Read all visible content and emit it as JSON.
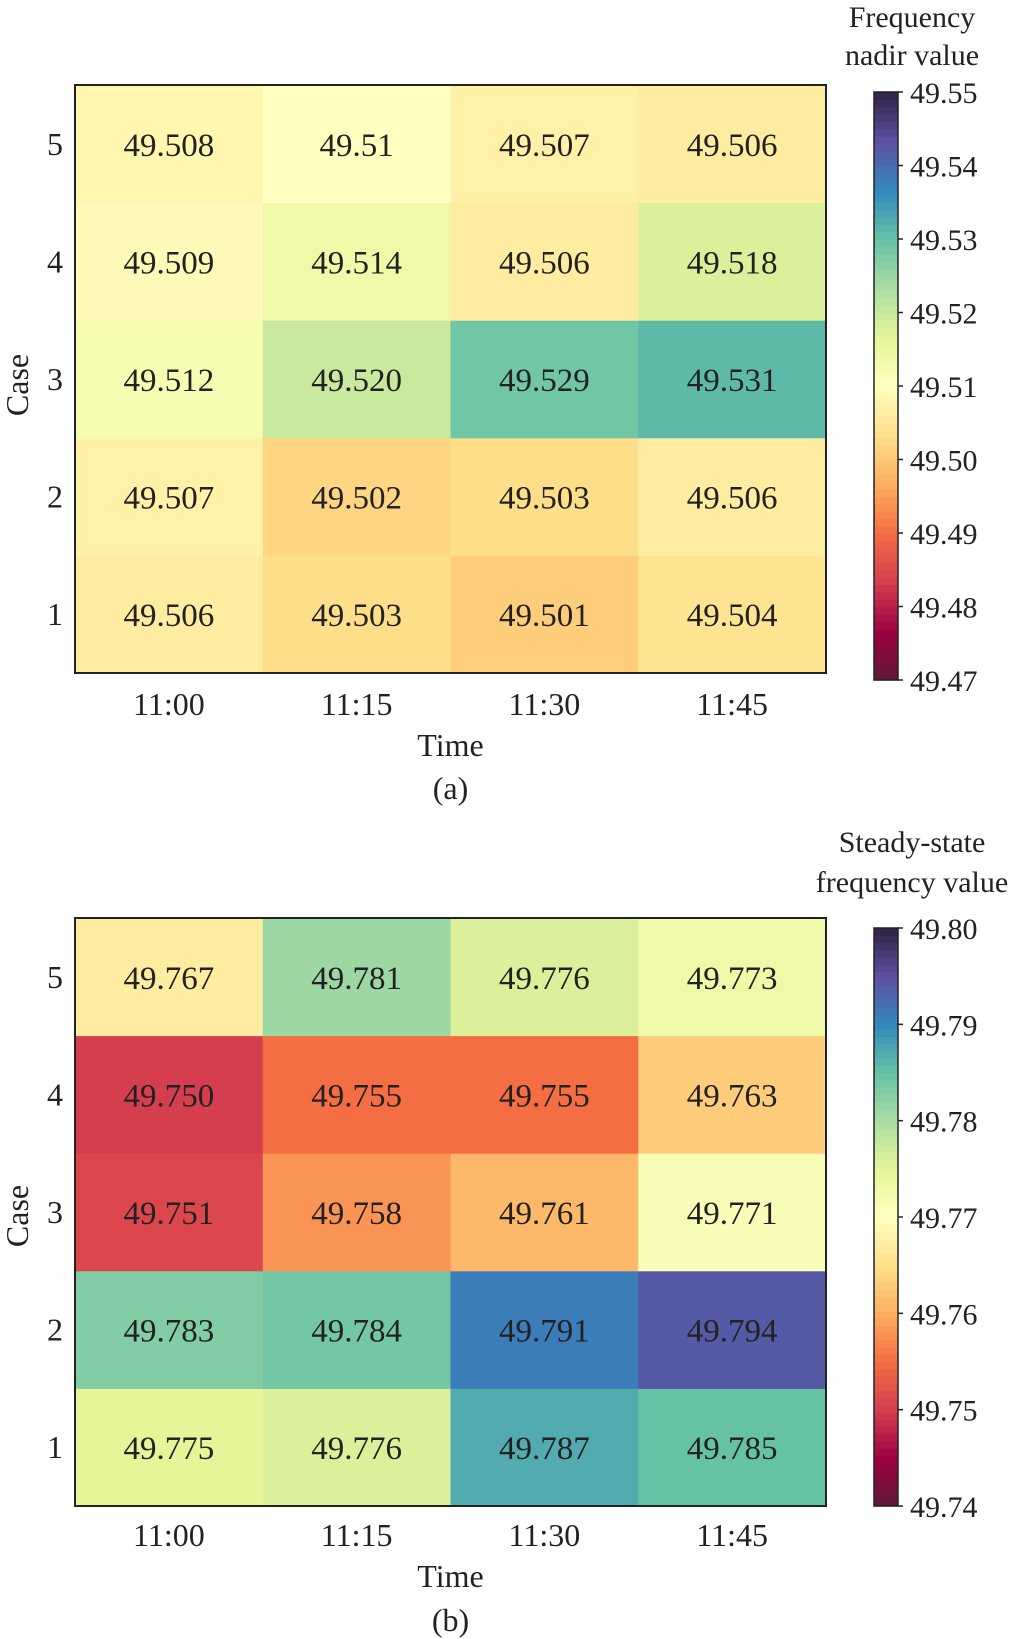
{
  "chart_data": [
    {
      "type": "heatmap",
      "panel_label": "(a)",
      "xlabel": "Time",
      "ylabel": "Case",
      "x_categories": [
        "11:00",
        "11:15",
        "11:30",
        "11:45"
      ],
      "y_categories": [
        "1",
        "2",
        "3",
        "4",
        "5"
      ],
      "values": [
        [
          49.506,
          49.503,
          49.501,
          49.504
        ],
        [
          49.507,
          49.502,
          49.503,
          49.506
        ],
        [
          49.512,
          49.52,
          49.529,
          49.531
        ],
        [
          49.509,
          49.514,
          49.506,
          49.518
        ],
        [
          49.508,
          49.51,
          49.507,
          49.506
        ]
      ],
      "value_labels": [
        [
          "49.506",
          "49.503",
          "49.501",
          "49.504"
        ],
        [
          "49.507",
          "49.502",
          "49.503",
          "49.506"
        ],
        [
          "49.512",
          "49.520",
          "49.529",
          "49.531"
        ],
        [
          "49.509",
          "49.514",
          "49.506",
          "49.518"
        ],
        [
          "49.508",
          "49.51",
          "49.507",
          "49.506"
        ]
      ],
      "colorbar": {
        "title_lines": [
          "Frequency",
          "nadir value"
        ],
        "min": 49.47,
        "max": 49.55,
        "ticks": [
          "49.47",
          "49.48",
          "49.49",
          "49.50",
          "49.51",
          "49.52",
          "49.53",
          "49.54",
          "49.55"
        ],
        "colormap": "Spectral"
      }
    },
    {
      "type": "heatmap",
      "panel_label": "(b)",
      "xlabel": "Time",
      "ylabel": "Case",
      "x_categories": [
        "11:00",
        "11:15",
        "11:30",
        "11:45"
      ],
      "y_categories": [
        "1",
        "2",
        "3",
        "4",
        "5"
      ],
      "values": [
        [
          49.775,
          49.776,
          49.787,
          49.785
        ],
        [
          49.783,
          49.784,
          49.791,
          49.794
        ],
        [
          49.751,
          49.758,
          49.761,
          49.771
        ],
        [
          49.75,
          49.755,
          49.755,
          49.763
        ],
        [
          49.767,
          49.781,
          49.776,
          49.773
        ]
      ],
      "value_labels": [
        [
          "49.775",
          "49.776",
          "49.787",
          "49.785"
        ],
        [
          "49.783",
          "49.784",
          "49.791",
          "49.794"
        ],
        [
          "49.751",
          "49.758",
          "49.761",
          "49.771"
        ],
        [
          "49.750",
          "49.755",
          "49.755",
          "49.763"
        ],
        [
          "49.767",
          "49.781",
          "49.776",
          "49.773"
        ]
      ],
      "colorbar": {
        "title_lines": [
          "Steady-state",
          "frequency value"
        ],
        "min": 49.74,
        "max": 49.8,
        "ticks": [
          "49.74",
          "49.75",
          "49.76",
          "49.77",
          "49.78",
          "49.79",
          "49.80"
        ],
        "colormap": "Spectral"
      }
    }
  ],
  "colors": {
    "spectral_stops": [
      "#5e1a3a",
      "#9e0142",
      "#d53e4f",
      "#f46d43",
      "#fdae61",
      "#fee08b",
      "#ffffbf",
      "#e6f598",
      "#abdda4",
      "#66c2a5",
      "#3288bd",
      "#5e4fa2",
      "#302244"
    ],
    "frame": "#222222",
    "text": "#222222"
  }
}
